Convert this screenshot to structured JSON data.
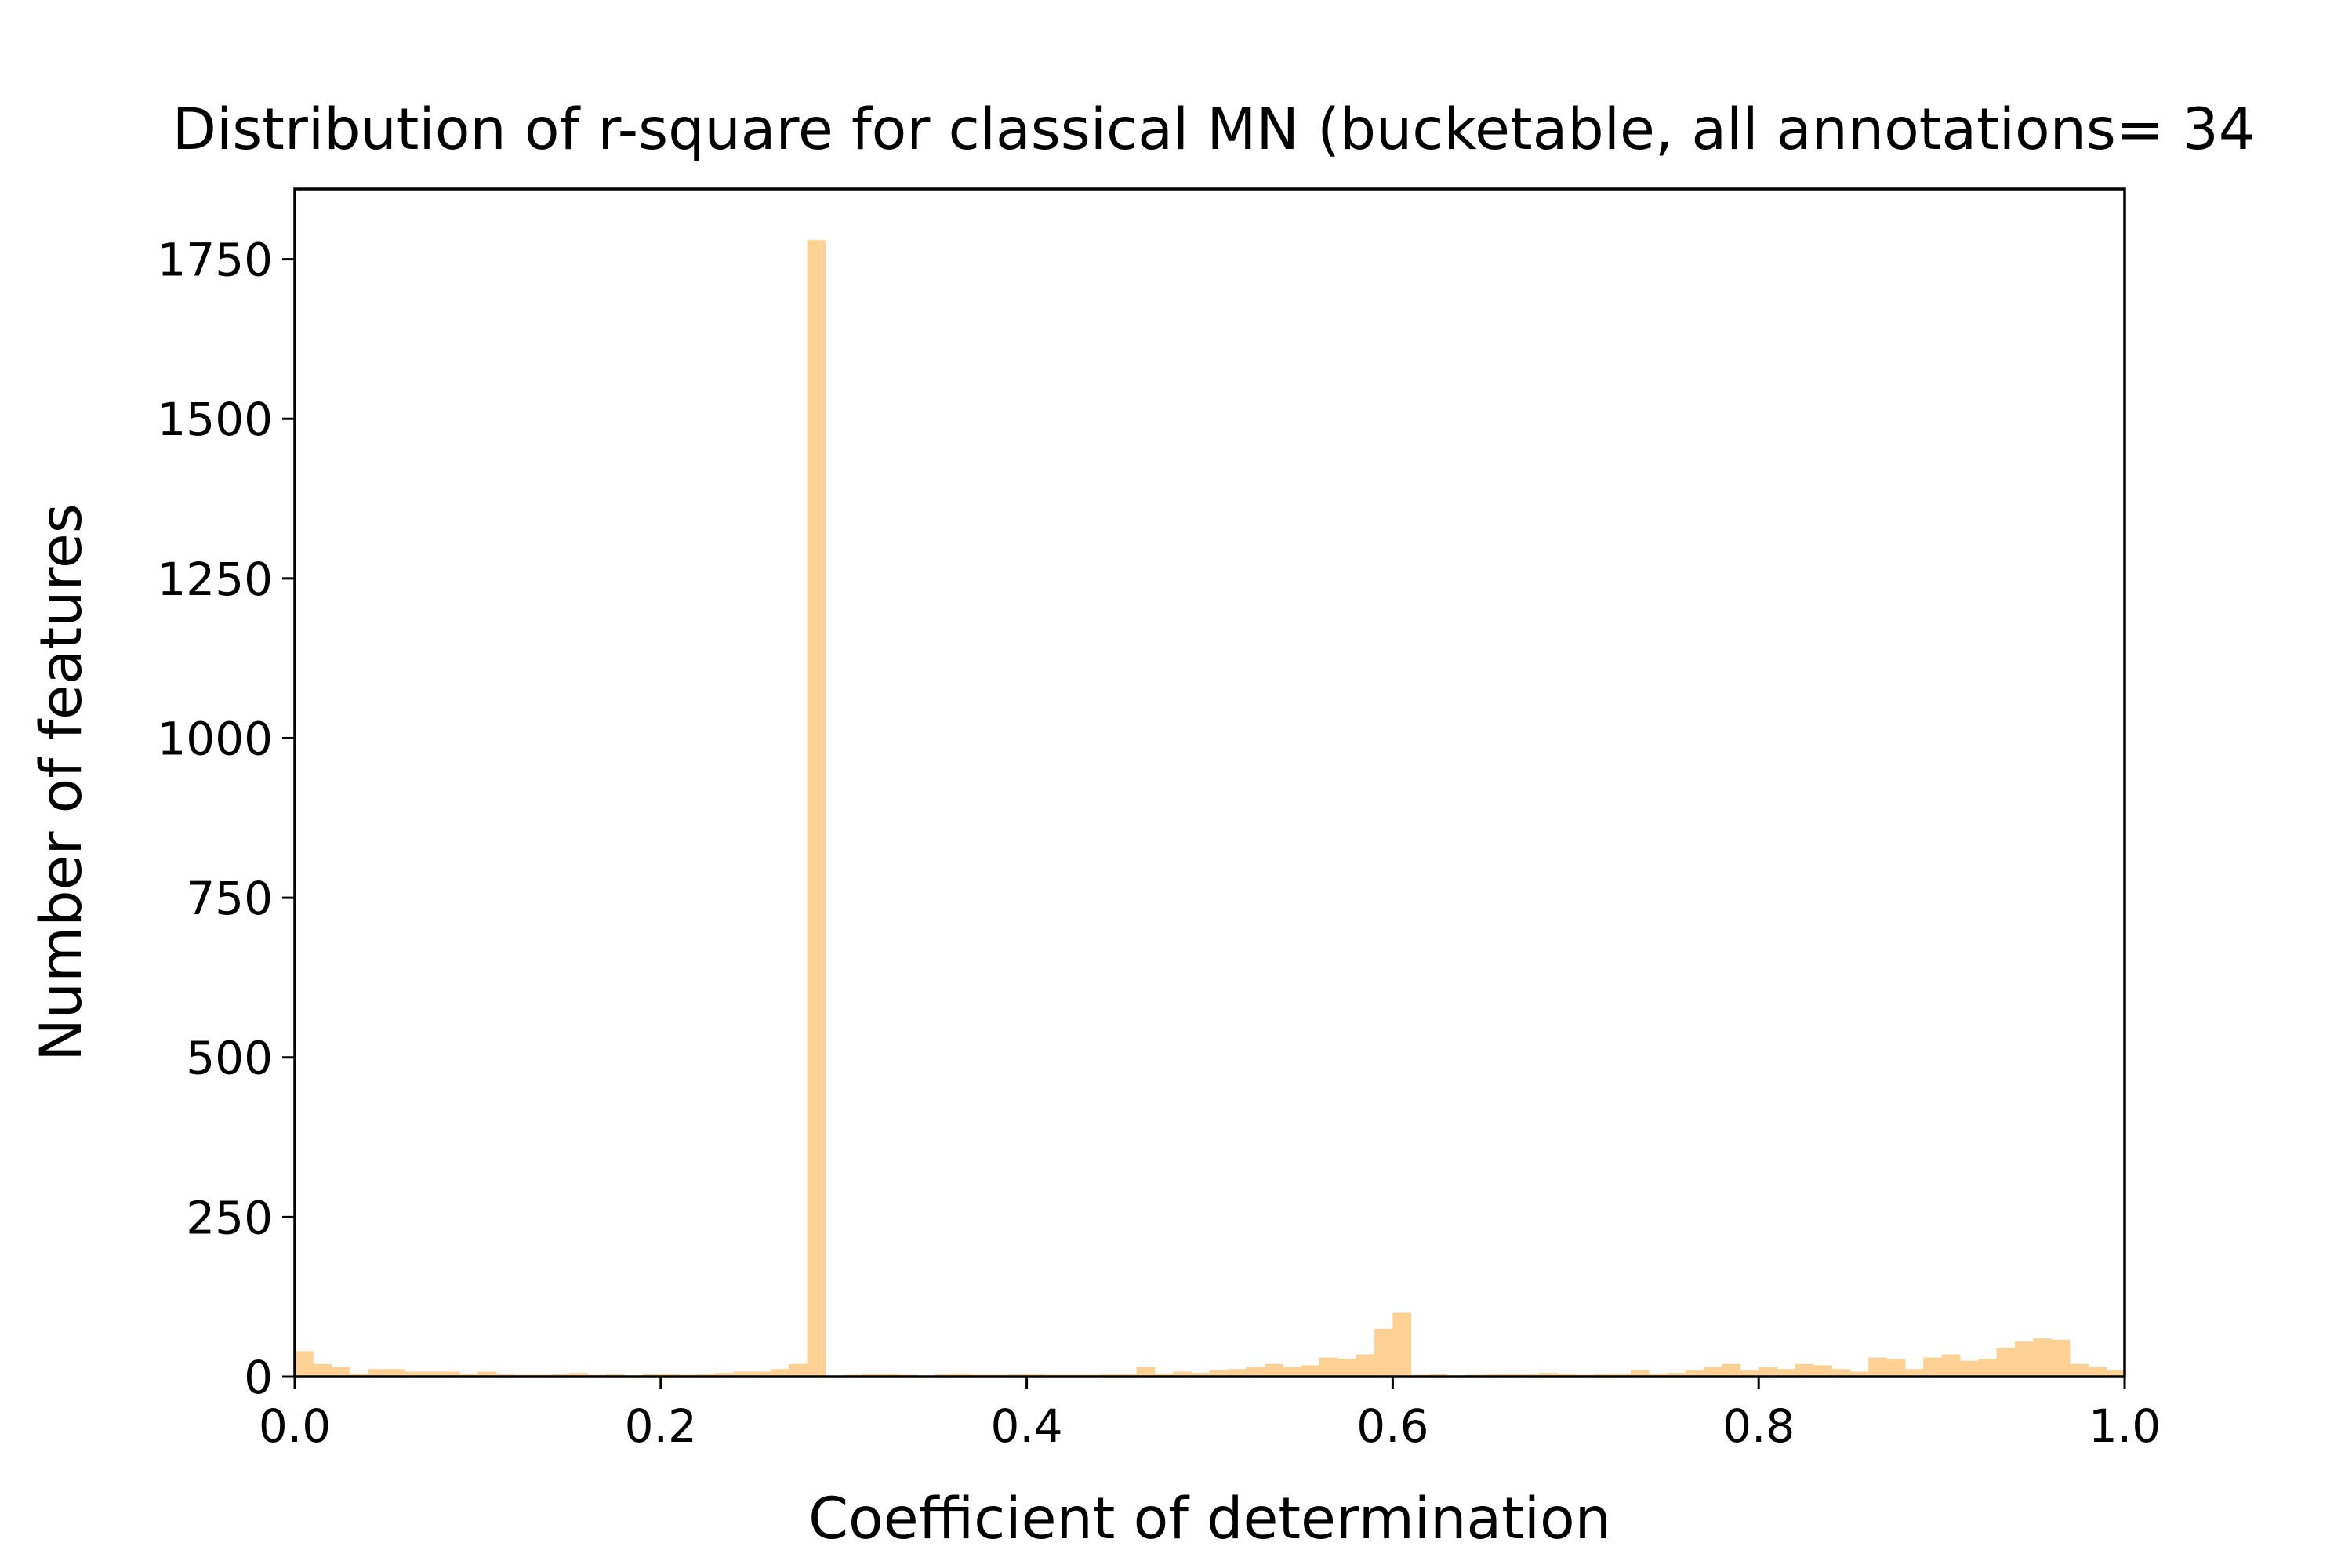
{
  "chart_data": {
    "type": "bar",
    "title": "Distribution of r-square for classical MN (bucketable, all annotations= 34",
    "xlabel": "Coefficient of determination",
    "ylabel": "Number of features",
    "xlim": [
      0.0,
      1.0
    ],
    "ylim": [
      0,
      1860
    ],
    "xticks": [
      "0.0",
      "0.2",
      "0.4",
      "0.6",
      "0.8",
      "1.0"
    ],
    "xtick_values": [
      0.0,
      0.2,
      0.4,
      0.6,
      0.8,
      1.0
    ],
    "yticks": [
      "0",
      "250",
      "500",
      "750",
      "1000",
      "1250",
      "1500",
      "1750"
    ],
    "ytick_values": [
      0,
      250,
      500,
      750,
      1000,
      1250,
      1500,
      1750
    ],
    "bin_width": 0.01,
    "bin_start": 0.0,
    "bar_color": "#fdd093",
    "grid": false,
    "values": [
      40,
      20,
      15,
      5,
      12,
      12,
      8,
      8,
      8,
      5,
      8,
      4,
      3,
      3,
      4,
      6,
      3,
      4,
      2,
      4,
      4,
      3,
      4,
      6,
      8,
      8,
      12,
      20,
      1780,
      2,
      3,
      5,
      5,
      3,
      2,
      4,
      5,
      3,
      3,
      4,
      4,
      3,
      3,
      3,
      4,
      4,
      15,
      5,
      8,
      6,
      10,
      12,
      15,
      20,
      15,
      18,
      30,
      28,
      35,
      75,
      100,
      3,
      4,
      2,
      3,
      4,
      5,
      4,
      6,
      5,
      3,
      4,
      5,
      10,
      5,
      6,
      10,
      15,
      20,
      10,
      15,
      12,
      20,
      18,
      12,
      8,
      30,
      28,
      12,
      30,
      35,
      25,
      28,
      45,
      55,
      60,
      58,
      20,
      15,
      10
    ]
  }
}
